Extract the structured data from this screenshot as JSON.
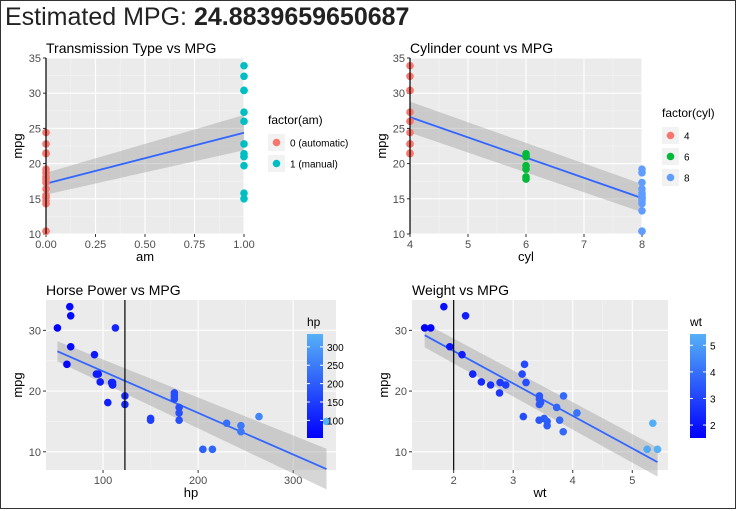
{
  "header": {
    "label": "Estimated MPG:",
    "value": "24.8839659650687"
  },
  "chart_data": [
    {
      "type": "scatter",
      "title": "Transmission Type vs MPG",
      "xlabel": "am",
      "ylabel": "mpg",
      "xlim": [
        0,
        1
      ],
      "ylim": [
        10,
        35
      ],
      "xticks": [
        "0.00",
        "0.25",
        "0.50",
        "0.75",
        "1.00"
      ],
      "yticks": [
        "10",
        "15",
        "20",
        "25",
        "30",
        "35"
      ],
      "grid": true,
      "vline": 0,
      "legend": {
        "title": "factor(am)",
        "type": "discrete",
        "position": "right",
        "entries": [
          {
            "label": "0 (automatic)",
            "color": "#F8766D"
          },
          {
            "label": "1 (manual)",
            "color": "#00BFC4"
          }
        ]
      },
      "fit": {
        "x": [
          0,
          1
        ],
        "y": [
          17.15,
          24.39
        ],
        "ci_low": [
          15.6,
          21.9
        ],
        "ci_high": [
          18.7,
          26.9
        ]
      },
      "series": [
        {
          "name": "0 (automatic)",
          "color": "#F8766D",
          "x": [
            0,
            0,
            0,
            0,
            0,
            0,
            0,
            0,
            0,
            0,
            0,
            0,
            0,
            0,
            0,
            0,
            0
          ],
          "y": [
            21.4,
            18.7,
            18.1,
            14.3,
            24.4,
            22.8,
            19.2,
            17.8,
            16.4,
            17.3,
            15.2,
            10.4,
            10.4,
            14.7,
            21.5,
            15.5,
            15.2
          ]
        },
        {
          "name": "1 (manual)",
          "color": "#00BFC4",
          "x": [
            1,
            1,
            1,
            1,
            1,
            1,
            1,
            1,
            1,
            1,
            1,
            1,
            1
          ],
          "y": [
            21.0,
            21.0,
            22.8,
            32.4,
            30.4,
            33.9,
            27.3,
            26.0,
            30.4,
            15.8,
            19.7,
            15.0,
            21.4
          ]
        }
      ]
    },
    {
      "type": "scatter",
      "title": "Cylinder count vs MPG",
      "xlabel": "cyl",
      "ylabel": "mpg",
      "xlim": [
        4,
        8
      ],
      "ylim": [
        10,
        35
      ],
      "xticks": [
        "4",
        "5",
        "6",
        "7",
        "8"
      ],
      "yticks": [
        "10",
        "15",
        "20",
        "25",
        "30",
        "35"
      ],
      "grid": true,
      "vline": 4,
      "legend": {
        "title": "factor(cyl)",
        "type": "discrete",
        "position": "right",
        "entries": [
          {
            "label": "4",
            "color": "#F8766D"
          },
          {
            "label": "6",
            "color": "#00BA38"
          },
          {
            "label": "8",
            "color": "#619CFF"
          }
        ]
      },
      "fit": {
        "x": [
          4,
          8
        ],
        "y": [
          26.6,
          15.1
        ],
        "ci_low": [
          24.4,
          13.1
        ],
        "ci_high": [
          28.8,
          17.1
        ]
      },
      "series": [
        {
          "name": "4",
          "color": "#F8766D",
          "x": [
            4,
            4,
            4,
            4,
            4,
            4,
            4,
            4,
            4,
            4,
            4
          ],
          "y": [
            22.8,
            24.4,
            22.8,
            32.4,
            30.4,
            33.9,
            21.5,
            27.3,
            26.0,
            30.4,
            21.4
          ]
        },
        {
          "name": "6",
          "color": "#00BA38",
          "x": [
            6,
            6,
            6,
            6,
            6,
            6,
            6
          ],
          "y": [
            21.0,
            21.0,
            21.4,
            18.1,
            19.2,
            17.8,
            19.7
          ]
        },
        {
          "name": "8",
          "color": "#619CFF",
          "x": [
            8,
            8,
            8,
            8,
            8,
            8,
            8,
            8,
            8,
            8,
            8,
            8,
            8,
            8
          ],
          "y": [
            18.7,
            14.3,
            16.4,
            17.3,
            15.2,
            10.4,
            10.4,
            14.7,
            15.5,
            15.2,
            13.3,
            19.2,
            15.8,
            15.0
          ]
        }
      ]
    },
    {
      "type": "scatter",
      "title": "Horse Power vs MPG",
      "xlabel": "hp",
      "ylabel": "mpg",
      "xlim": [
        40,
        345
      ],
      "ylim": [
        7,
        35
      ],
      "xticks": [
        "100",
        "200",
        "300"
      ],
      "yticks": [
        "10",
        "20",
        "30"
      ],
      "grid": true,
      "vline": 123,
      "legend": {
        "title": "hp",
        "type": "continuous",
        "position": "right",
        "range": [
          52,
          335
        ],
        "ticks": [
          "100",
          "150",
          "200",
          "250",
          "300"
        ],
        "low_color": "#0000FF",
        "high_color": "#56B1F7"
      },
      "fit": {
        "x": [
          52,
          335
        ],
        "y": [
          26.55,
          7.15
        ],
        "ci_low": [
          24.9,
          3.8
        ],
        "ci_high": [
          28.2,
          10.5
        ]
      },
      "series": [
        {
          "name": "hp",
          "color_by": "x",
          "x": [
            110,
            110,
            93,
            110,
            175,
            105,
            245,
            62,
            95,
            123,
            123,
            180,
            180,
            180,
            205,
            215,
            230,
            66,
            52,
            65,
            97,
            150,
            150,
            245,
            175,
            66,
            91,
            113,
            264,
            175,
            335,
            109
          ],
          "y": [
            21.0,
            21.0,
            22.8,
            21.4,
            18.7,
            18.1,
            14.3,
            24.4,
            22.8,
            19.2,
            17.8,
            16.4,
            17.3,
            15.2,
            10.4,
            10.4,
            14.7,
            32.4,
            30.4,
            33.9,
            21.5,
            15.5,
            15.2,
            13.3,
            19.2,
            27.3,
            26.0,
            30.4,
            15.8,
            19.7,
            15.0,
            21.4
          ]
        }
      ]
    },
    {
      "type": "scatter",
      "title": "Weight vs MPG",
      "xlabel": "wt",
      "ylabel": "mpg",
      "xlim": [
        1.3,
        5.6
      ],
      "ylim": [
        7,
        35
      ],
      "xticks": [
        "2",
        "3",
        "4",
        "5"
      ],
      "yticks": [
        "10",
        "20",
        "30"
      ],
      "grid": true,
      "vline": 2,
      "legend": {
        "title": "wt",
        "type": "continuous",
        "position": "right",
        "range": [
          1.513,
          5.424
        ],
        "ticks": [
          "2",
          "3",
          "4",
          "5"
        ],
        "low_color": "#0000FF",
        "high_color": "#56B1F7"
      },
      "fit": {
        "x": [
          1.513,
          5.424
        ],
        "y": [
          29.2,
          8.3
        ],
        "ci_low": [
          27.2,
          5.9
        ],
        "ci_high": [
          31.2,
          10.7
        ]
      },
      "series": [
        {
          "name": "wt",
          "color_by": "x",
          "x": [
            2.62,
            2.875,
            2.32,
            3.215,
            3.44,
            3.46,
            3.57,
            3.19,
            3.15,
            3.44,
            3.44,
            4.07,
            3.73,
            3.78,
            5.25,
            5.424,
            5.345,
            2.2,
            1.615,
            1.835,
            2.465,
            3.52,
            3.435,
            3.84,
            3.845,
            1.935,
            2.14,
            1.513,
            3.17,
            2.77,
            3.57,
            2.78
          ],
          "y": [
            21.0,
            21.0,
            22.8,
            21.4,
            18.7,
            18.1,
            14.3,
            24.4,
            22.8,
            19.2,
            17.8,
            16.4,
            17.3,
            15.2,
            10.4,
            10.4,
            14.7,
            32.4,
            30.4,
            33.9,
            21.5,
            15.5,
            15.2,
            13.3,
            19.2,
            27.3,
            26.0,
            30.4,
            15.8,
            19.7,
            15.0,
            21.4
          ]
        }
      ]
    }
  ]
}
